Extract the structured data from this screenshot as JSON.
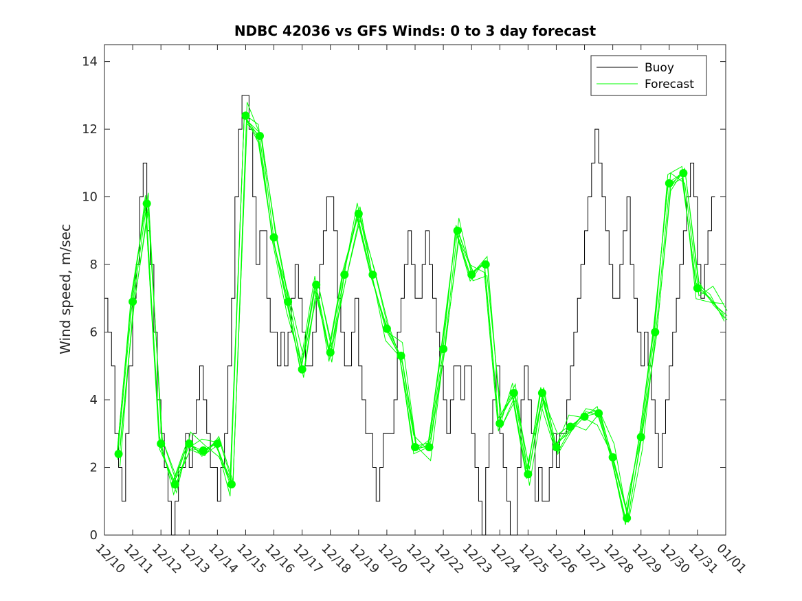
{
  "chart_data": {
    "type": "line",
    "title": "NDBC 42036 vs GFS Winds: 0 to 3 day forecast",
    "xlabel": "",
    "ylabel": "Wind speed, m/sec",
    "x_tick_labels": [
      "12/10",
      "12/11",
      "12/12",
      "12/13",
      "12/14",
      "12/15",
      "12/16",
      "12/17",
      "12/18",
      "12/19",
      "12/20",
      "12/21",
      "12/22",
      "12/23",
      "12/24",
      "12/25",
      "12/26",
      "12/27",
      "12/28",
      "12/29",
      "12/30",
      "12/31",
      "01/01"
    ],
    "y_ticks": [
      0,
      2,
      4,
      6,
      8,
      10,
      12,
      14
    ],
    "xlim": [
      0,
      22
    ],
    "ylim": [
      0,
      14.5
    ],
    "grid": false,
    "legend": {
      "location": "top-right",
      "entries": [
        "Buoy",
        "Forecast"
      ]
    },
    "colors": {
      "buoy": "#000000",
      "forecast": "#00ff00"
    },
    "series": [
      {
        "name": "Buoy",
        "x": [
          0.0,
          0.12,
          0.25,
          0.37,
          0.5,
          0.62,
          0.75,
          0.87,
          1.0,
          1.12,
          1.25,
          1.37,
          1.5,
          1.62,
          1.75,
          1.87,
          2.0,
          2.12,
          2.25,
          2.37,
          2.5,
          2.62,
          2.75,
          2.87,
          3.0,
          3.12,
          3.25,
          3.37,
          3.5,
          3.62,
          3.75,
          3.87,
          4.0,
          4.12,
          4.25,
          4.37,
          4.5,
          4.62,
          4.75,
          4.87,
          5.0,
          5.12,
          5.25,
          5.37,
          5.5,
          5.62,
          5.75,
          5.87,
          6.0,
          6.12,
          6.25,
          6.37,
          6.5,
          6.62,
          6.75,
          6.87,
          7.0,
          7.12,
          7.25,
          7.37,
          7.5,
          7.62,
          7.75,
          7.87,
          8.0,
          8.12,
          8.25,
          8.37,
          8.5,
          8.62,
          8.75,
          8.87,
          9.0,
          9.12,
          9.25,
          9.37,
          9.5,
          9.62,
          9.75,
          9.87,
          10.0,
          10.12,
          10.25,
          10.37,
          10.5,
          10.62,
          10.75,
          10.87,
          11.0,
          11.12,
          11.25,
          11.37,
          11.5,
          11.62,
          11.75,
          11.87,
          12.0,
          12.12,
          12.25,
          12.37,
          12.5,
          12.62,
          12.75,
          12.87,
          13.0,
          13.12,
          13.25,
          13.37,
          13.5,
          13.62,
          13.75,
          13.87,
          14.0,
          14.12,
          14.25,
          14.37,
          14.5,
          14.62,
          14.75,
          14.87,
          15.0,
          15.12,
          15.25,
          15.37,
          15.5,
          15.62,
          15.75,
          15.87,
          16.0,
          16.12,
          16.25,
          16.37,
          16.5,
          16.62,
          16.75,
          16.87,
          17.0,
          17.12,
          17.25,
          17.37,
          17.5,
          17.62,
          17.75,
          17.87,
          18.0,
          18.12,
          18.25,
          18.37,
          18.5,
          18.62,
          18.75,
          18.87,
          19.0,
          19.12,
          19.25,
          19.37,
          19.5,
          19.62,
          19.75,
          19.87,
          20.0,
          20.12,
          20.25,
          20.37,
          20.5,
          20.62,
          20.75,
          20.87,
          21.0,
          21.12,
          21.25,
          21.37,
          21.5
        ],
        "values": [
          7,
          6,
          5,
          3,
          2,
          1,
          3,
          5,
          7,
          8,
          10,
          11,
          9,
          8,
          6,
          4,
          3,
          2,
          1,
          0,
          1,
          2,
          2,
          3,
          2,
          3,
          4,
          5,
          4,
          3,
          2,
          2,
          1,
          2,
          3,
          5,
          7,
          10,
          12,
          13,
          13,
          12,
          10,
          8,
          9,
          9,
          7,
          6,
          6,
          5,
          6,
          5,
          6,
          7,
          8,
          7,
          6,
          5,
          5,
          6,
          7,
          8,
          9,
          10,
          10,
          9,
          7,
          6,
          5,
          5,
          6,
          7,
          5,
          4,
          3,
          3,
          2,
          1,
          2,
          3,
          3,
          3,
          4,
          6,
          7,
          8,
          9,
          8,
          7,
          7,
          8,
          9,
          8,
          7,
          6,
          5,
          4,
          3,
          4,
          5,
          5,
          4,
          5,
          5,
          3,
          2,
          1,
          0,
          2,
          3,
          4,
          5,
          3,
          2,
          1,
          0,
          0,
          2,
          4,
          5,
          4,
          3,
          1,
          2,
          1,
          1,
          2,
          3,
          2,
          3,
          3,
          4,
          5,
          6,
          7,
          8,
          9,
          10,
          11,
          12,
          11,
          10,
          9,
          8,
          7,
          7,
          8,
          9,
          10,
          8,
          7,
          6,
          5,
          6,
          5,
          4,
          3,
          2,
          3,
          4,
          5,
          6,
          7,
          8,
          9,
          10,
          11,
          10,
          8,
          7,
          8,
          9,
          10
        ]
      },
      {
        "name": "Forecast",
        "x": [
          0.5,
          1.0,
          1.5,
          2.0,
          2.5,
          3.0,
          3.5,
          4.0,
          4.5,
          5.0,
          5.5,
          6.0,
          6.5,
          7.0,
          7.5,
          8.0,
          8.5,
          9.0,
          9.5,
          10.0,
          10.5,
          11.0,
          11.5,
          12.0,
          12.5,
          13.0,
          13.5,
          14.0,
          14.5,
          15.0,
          15.5,
          16.0,
          16.5,
          17.0,
          17.5,
          18.0,
          18.5,
          19.0,
          19.5,
          20.0,
          20.5,
          21.0,
          21.5,
          22.0
        ],
        "values": [
          2.4,
          6.9,
          9.8,
          2.7,
          1.5,
          2.7,
          2.5,
          2.7,
          1.5,
          12.4,
          11.8,
          8.8,
          6.9,
          4.9,
          7.4,
          5.4,
          7.7,
          9.5,
          7.7,
          6.1,
          5.3,
          2.6,
          2.6,
          5.5,
          9.0,
          7.7,
          8.0,
          3.3,
          4.2,
          1.8,
          4.2,
          2.6,
          3.2,
          3.5,
          3.6,
          2.3,
          0.5,
          2.9,
          6.0,
          10.4,
          10.7,
          7.3,
          7.0,
          6.5
        ]
      }
    ],
    "markers": {
      "name": "",
      "x": [
        0.5,
        1.0,
        1.5,
        2.0,
        2.5,
        3.0,
        3.5,
        4.0,
        4.5,
        5.0,
        5.5,
        6.0,
        6.5,
        7.0,
        7.5,
        8.0,
        8.5,
        9.0,
        9.5,
        10.0,
        10.5,
        11.0,
        11.5,
        12.0,
        12.5,
        13.0,
        13.5,
        14.0,
        14.5,
        15.0,
        15.5,
        16.0,
        16.5,
        17.0,
        17.5,
        18.0,
        18.5,
        19.0,
        19.5,
        20.0,
        20.5,
        21.0
      ],
      "values": [
        2.4,
        6.9,
        9.8,
        2.7,
        1.5,
        2.7,
        2.5,
        2.7,
        1.5,
        12.4,
        11.8,
        8.8,
        6.9,
        4.9,
        7.4,
        5.4,
        7.7,
        9.5,
        7.7,
        6.1,
        5.3,
        2.6,
        2.6,
        5.5,
        9.0,
        7.7,
        8.0,
        3.3,
        4.2,
        1.8,
        4.2,
        2.6,
        3.2,
        3.5,
        3.6,
        2.3,
        0.5,
        2.9,
        6.0,
        10.4,
        10.7,
        7.3
      ]
    }
  }
}
